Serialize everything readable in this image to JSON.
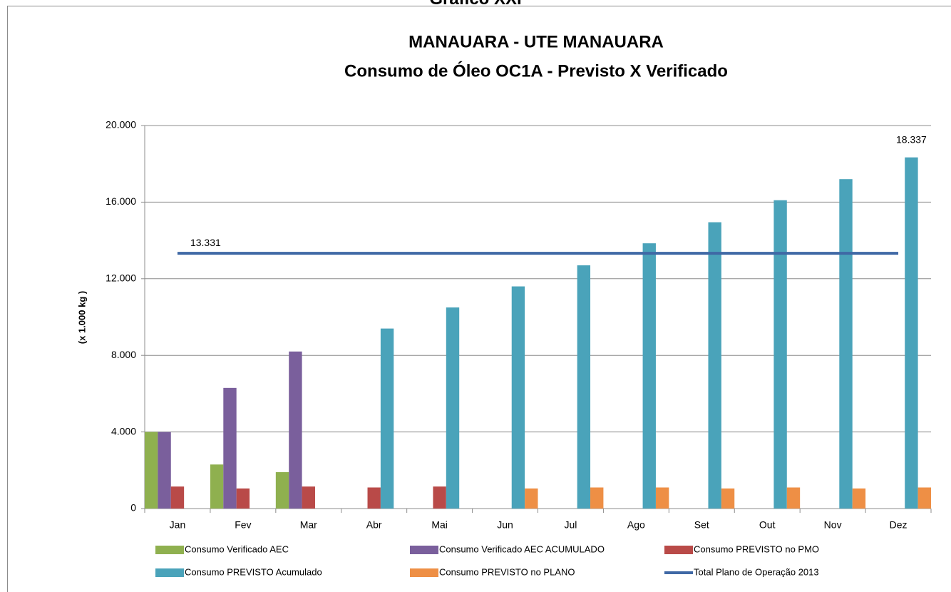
{
  "page_title": "Gráfico XXI",
  "chart_data": {
    "type": "bar",
    "title": "MANAUARA - UTE MANAUARA",
    "subtitle": "Consumo de Óleo OC1A - Previsto X Verificado",
    "y_label": "(x 1.000 kg )",
    "categories": [
      "Jan",
      "Fev",
      "Mar",
      "Abr",
      "Mai",
      "Jun",
      "Jul",
      "Ago",
      "Set",
      "Out",
      "Nov",
      "Dez"
    ],
    "ylim": [
      0,
      20000
    ],
    "yticks": [
      0,
      {
        "value": 4000,
        "label": "4.000"
      },
      {
        "value": 8000,
        "label": "8.000"
      },
      {
        "value": 12000,
        "label": "12.000"
      },
      {
        "value": 16000,
        "label": "16.000"
      },
      {
        "value": 20000,
        "label": "20.000"
      }
    ],
    "grid": true,
    "legend": "bottom",
    "series": [
      {
        "name": "Consumo Verificado AEC",
        "color": "#8fb04f",
        "values": [
          4000,
          2300,
          1900,
          null,
          null,
          null,
          null,
          null,
          null,
          null,
          null,
          null
        ]
      },
      {
        "name": "Consumo Verificado AEC ACUMULADO",
        "color": "#7a5f9c",
        "values": [
          4000,
          6300,
          8200,
          null,
          null,
          null,
          null,
          null,
          null,
          null,
          null,
          null
        ]
      },
      {
        "name": "Consumo PREVISTO no PMO",
        "color": "#b94a48",
        "values": [
          1150,
          1050,
          1150,
          1100,
          1150,
          null,
          null,
          null,
          null,
          null,
          null,
          null
        ]
      },
      {
        "name": "Consumo PREVISTO Acumulado",
        "color": "#4aa3ba",
        "values": [
          null,
          null,
          null,
          9400,
          10500,
          11600,
          12700,
          13850,
          14950,
          16100,
          17200,
          18337
        ],
        "value_labels": [
          null,
          null,
          null,
          null,
          null,
          null,
          null,
          null,
          null,
          null,
          null,
          "18.337"
        ]
      },
      {
        "name": "Consumo PREVISTO no PLANO",
        "color": "#ee8f45",
        "values": [
          null,
          null,
          null,
          null,
          null,
          1050,
          1100,
          1100,
          1050,
          1100,
          1050,
          1100
        ]
      },
      {
        "name": "Total Plano de Operação 2013",
        "type": "line",
        "color": "#3f68a5",
        "values": [
          13331,
          13331,
          13331,
          13331,
          13331,
          13331,
          13331,
          13331,
          13331,
          13331,
          13331,
          13331
        ],
        "value_labels": [
          "13.331",
          null,
          null,
          null,
          null,
          null,
          null,
          null,
          null,
          null,
          null,
          null
        ]
      }
    ]
  }
}
